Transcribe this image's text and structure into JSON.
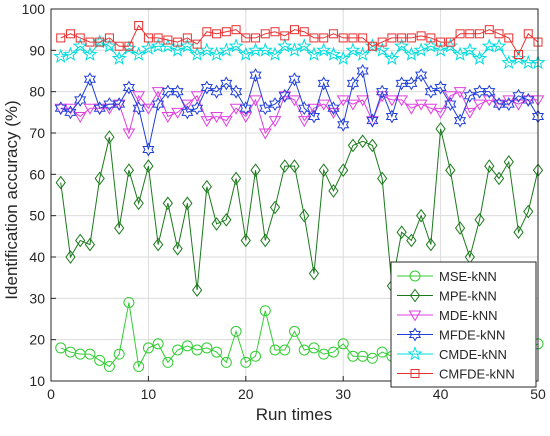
{
  "chart_data": {
    "type": "line",
    "xlabel": "Run times",
    "ylabel": "Identification accuracy (%)",
    "xlim": [
      0,
      50
    ],
    "ylim": [
      10,
      100
    ],
    "xticks": [
      0,
      10,
      20,
      30,
      40,
      50
    ],
    "yticks": [
      10,
      20,
      30,
      40,
      50,
      60,
      70,
      80,
      90,
      100
    ],
    "grid": true,
    "legend_position": "bottom-right",
    "x": [
      1,
      2,
      3,
      4,
      5,
      6,
      7,
      8,
      9,
      10,
      11,
      12,
      13,
      14,
      15,
      16,
      17,
      18,
      19,
      20,
      21,
      22,
      23,
      24,
      25,
      26,
      27,
      28,
      29,
      30,
      31,
      32,
      33,
      34,
      35,
      36,
      37,
      38,
      39,
      40,
      41,
      42,
      43,
      44,
      45,
      46,
      47,
      48,
      49,
      50
    ],
    "series": [
      {
        "name": "MSE-kNN",
        "color": "#33cc33",
        "marker": "circle",
        "values": [
          18,
          17,
          16.5,
          16.5,
          15,
          13.5,
          16.5,
          29,
          13.5,
          18,
          19,
          14.5,
          17.5,
          18.5,
          17.5,
          18,
          17,
          14.5,
          22,
          14.5,
          16,
          27,
          17.5,
          17.5,
          22,
          17.5,
          18,
          16.5,
          17,
          19,
          16,
          16,
          15.5,
          17,
          16,
          18,
          17,
          16.5,
          18,
          17.5,
          16,
          17,
          16.5,
          18,
          17,
          16.5,
          17,
          16,
          17,
          19
        ]
      },
      {
        "name": "MPE-kNN",
        "color": "#1a7a1a",
        "marker": "diamond",
        "values": [
          58,
          40,
          44,
          43,
          59,
          69,
          47,
          61,
          53,
          62,
          43,
          53,
          42,
          53,
          32,
          57,
          48,
          49,
          59,
          44,
          61,
          44,
          52,
          62,
          62,
          50,
          36,
          61,
          56,
          61,
          67,
          68,
          67,
          59,
          33,
          46,
          44,
          50,
          43,
          71,
          61,
          47,
          40,
          49,
          62,
          59,
          63,
          46,
          51,
          61
        ]
      },
      {
        "name": "MDE-kNN",
        "color": "#e040e0",
        "marker": "triangle-down",
        "values": [
          76,
          76,
          74,
          76,
          76,
          76,
          77,
          70,
          79,
          76,
          80,
          74,
          75,
          77,
          79,
          73,
          74,
          73,
          76,
          74,
          78,
          70,
          73,
          79,
          78,
          73,
          76,
          77,
          75,
          78,
          77,
          78,
          73,
          79,
          78,
          78,
          76,
          77,
          76,
          75,
          79,
          80,
          75,
          77,
          78,
          77,
          78,
          77,
          78,
          78
        ]
      },
      {
        "name": "MFDE-kNN",
        "color": "#1f3fd8",
        "marker": "hexagram",
        "values": [
          76,
          75,
          78,
          83,
          76,
          77,
          77,
          81,
          76,
          66,
          77,
          80,
          80,
          75,
          76,
          81,
          80,
          82,
          80,
          76,
          84,
          76,
          77,
          79,
          83,
          76,
          74,
          82,
          76,
          72,
          82,
          85,
          73,
          80,
          74,
          82,
          82,
          84,
          80,
          81,
          77,
          73,
          79,
          80,
          80,
          77,
          77,
          79,
          78,
          74
        ]
      },
      {
        "name": "CMDE-kNN",
        "color": "#00dddd",
        "marker": "star",
        "values": [
          88.5,
          89,
          91,
          89,
          92,
          91,
          88,
          90.5,
          89,
          90.5,
          91,
          91,
          90,
          91,
          89,
          90,
          89,
          90,
          91,
          89,
          90,
          90,
          89,
          91,
          90,
          91,
          89,
          90,
          89,
          88,
          90,
          89,
          91,
          90,
          88,
          91,
          89,
          90,
          91,
          90,
          91,
          89,
          90,
          88,
          91,
          91,
          87,
          88,
          87,
          87
        ]
      },
      {
        "name": "CMFDE-kNN",
        "color": "#e83030",
        "marker": "square",
        "values": [
          93,
          94,
          93,
          92,
          92,
          93,
          91,
          91,
          96,
          93,
          93,
          92.5,
          92,
          93,
          91.5,
          94.5,
          94,
          94.5,
          95,
          93,
          93,
          94,
          94.5,
          93.5,
          95,
          94.5,
          93,
          93,
          94,
          93,
          93,
          93,
          91,
          92,
          93,
          93,
          93,
          93.5,
          93,
          92,
          92,
          94,
          94,
          94,
          95,
          94,
          93,
          89,
          94,
          92
        ]
      }
    ]
  }
}
